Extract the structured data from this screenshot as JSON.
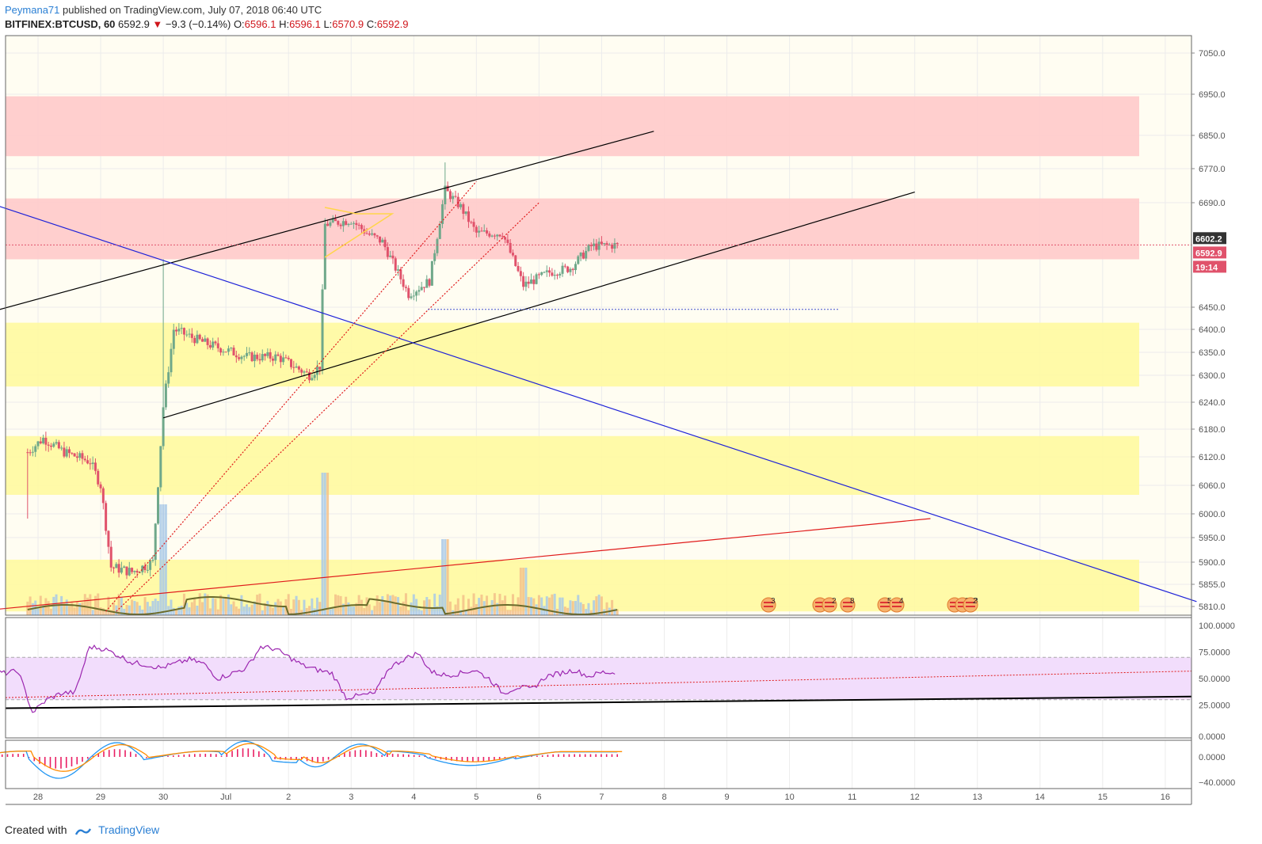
{
  "header": {
    "user": "Peymana71",
    "published": "published on TradingView.com, July 07, 2018 06:40 UTC",
    "symbol": "BITFINEX:BTCUSD, 60",
    "last": "6592.9",
    "change": "−9.3 (−0.14%)",
    "o_label": "O:",
    "o_val": "6596.1",
    "h_label": "H:",
    "h_val": "6596.1",
    "l_label": "L:",
    "l_val": "6570.9",
    "c_label": "C:",
    "c_val": "6592.9"
  },
  "footer": {
    "created": "Created with",
    "brand": "TradingView"
  },
  "colors": {
    "up": "#6fa88a",
    "down": "#e0526b",
    "supply_zone": "#ffcccb",
    "demand_zone": "#fffaa0",
    "rsi_band": "#f2ddfc",
    "rsi_line": "#9c27b0",
    "macd_line": "#2196f3",
    "signal_line": "#ff8c00",
    "histogram": "#e91e63"
  },
  "chart_data": [
    {
      "type": "candlestick",
      "name": "price",
      "yticks": [
        "7050.0",
        "6950.0",
        "6850.0",
        "6770.0",
        "6690.0",
        "6450.0",
        "6400.0",
        "6350.0",
        "6300.0",
        "6240.0",
        "6180.0",
        "6120.0",
        "6060.0",
        "6000.0",
        "5950.0",
        "5900.0",
        "5855.0",
        "5810.0"
      ],
      "xticks": [
        "28",
        "29",
        "30",
        "Jul",
        "2",
        "3",
        "4",
        "5",
        "6",
        "7",
        "8",
        "9",
        "10",
        "11",
        "12",
        "13",
        "14",
        "15",
        "16"
      ],
      "price_labels": [
        {
          "text": "6602.2",
          "color": "#333333"
        },
        {
          "text": "6592.9",
          "color": "#e0526b"
        },
        {
          "text": "19:14",
          "color": "#e0526b"
        }
      ],
      "zones": [
        {
          "kind": "supply",
          "from": 6800,
          "to": 6945
        },
        {
          "kind": "supply",
          "from": 6560,
          "to": 6700
        },
        {
          "kind": "demand",
          "from": 6275,
          "to": 6415
        },
        {
          "kind": "demand",
          "from": 6040,
          "to": 6165
        },
        {
          "kind": "demand",
          "from": 5800,
          "to": 5905
        }
      ],
      "ohlc_anchors": [
        {
          "date": "Jun 27 20:00",
          "close": 6130
        },
        {
          "date": "Jun 28 02:00",
          "close": 6160
        },
        {
          "date": "Jun 28 10:00",
          "close": 6130
        },
        {
          "date": "Jun 28 20:00",
          "close": 6110
        },
        {
          "date": "Jun 29 00:00",
          "close": 6060
        },
        {
          "date": "Jun 29 04:00",
          "close": 5890
        },
        {
          "date": "Jun 29 12:00",
          "close": 5880
        },
        {
          "date": "Jun 29 20:00",
          "close": 5900
        },
        {
          "date": "Jun 30 00:00",
          "close": 6230
        },
        {
          "date": "Jun 30 04:00",
          "close": 6400
        },
        {
          "date": "Jun 30 16:00",
          "close": 6370
        },
        {
          "date": "Jul 01 08:00",
          "close": 6340
        },
        {
          "date": "Jul 01 20:00",
          "close": 6340
        },
        {
          "date": "Jul 02 08:00",
          "close": 6300
        },
        {
          "date": "Jul 02 12:00",
          "close": 6320
        },
        {
          "date": "Jul 02 14:00",
          "close": 6640
        },
        {
          "date": "Jul 03 00:00",
          "close": 6650
        },
        {
          "date": "Jul 03 06:00",
          "close": 6620
        },
        {
          "date": "Jul 03 12:00",
          "close": 6600
        },
        {
          "date": "Jul 03 22:00",
          "close": 6480
        },
        {
          "date": "Jul 04 06:00",
          "close": 6510
        },
        {
          "date": "Jul 04 12:00",
          "close": 6720
        },
        {
          "date": "Jul 04 18:00",
          "close": 6680
        },
        {
          "date": "Jul 05 00:00",
          "close": 6620
        },
        {
          "date": "Jul 05 10:00",
          "close": 6620
        },
        {
          "date": "Jul 05 18:00",
          "close": 6500
        },
        {
          "date": "Jul 06 04:00",
          "close": 6530
        },
        {
          "date": "Jul 06 12:00",
          "close": 6540
        },
        {
          "date": "Jul 06 20:00",
          "close": 6590
        },
        {
          "date": "Jul 07 06:00",
          "close": 6593
        }
      ],
      "annotations": [
        {
          "kind": "trendline",
          "color": "#000000",
          "from": {
            "date": "Jun 27 00:00",
            "price": 6430
          },
          "to": {
            "date": "Jul 07 20:00",
            "price": 6860
          }
        },
        {
          "kind": "trendline",
          "color": "#000000",
          "from": {
            "date": "Jun 30 00:00",
            "price": 6205
          },
          "to": {
            "date": "Jul 12 00:00",
            "price": 6715
          }
        },
        {
          "kind": "trendline",
          "color": "#1e22d8",
          "from": {
            "date": "Jun 27 00:00",
            "price": 6700
          },
          "to": {
            "date": "Jul 16 12:00",
            "price": 5820
          }
        },
        {
          "kind": "trendline",
          "color": "#e01b1b",
          "from": {
            "date": "Jun 27 00:00",
            "price": 5800
          },
          "to": {
            "date": "Jul 12 06:00",
            "price": 5990
          }
        },
        {
          "kind": "dotted",
          "color": "#e01b1b",
          "from": {
            "date": "Jun 29 02:00",
            "price": 5800
          },
          "to": {
            "date": "Jul 05 00:00",
            "price": 6740
          }
        },
        {
          "kind": "dotted",
          "color": "#e01b1b",
          "from": {
            "date": "Jun 29 06:00",
            "price": 5800
          },
          "to": {
            "date": "Jul 06 00:00",
            "price": 6690
          }
        },
        {
          "kind": "hline_dotted",
          "color": "#4050d0",
          "price": 6445
        }
      ],
      "event_badges": [
        "3",
        "2",
        "8",
        "5",
        "4",
        "343",
        "2"
      ]
    },
    {
      "type": "line",
      "name": "RSI",
      "yticks": [
        "100.0000",
        "75.0000",
        "50.0000",
        "25.0000"
      ],
      "band": [
        30,
        70
      ],
      "values_anchor": [
        55,
        59,
        55,
        57,
        18,
        30,
        36,
        37,
        80,
        78,
        72,
        65,
        63,
        60,
        64,
        68,
        64,
        50,
        55,
        60,
        80,
        78,
        70,
        62,
        58,
        55,
        32,
        34,
        36,
        60,
        68,
        74,
        56,
        53,
        55,
        58,
        50,
        36,
        42,
        40,
        52,
        55,
        58,
        52,
        56,
        55
      ]
    },
    {
      "type": "histogram",
      "name": "MACD",
      "yticks": [
        "0.0000",
        "−40.0000"
      ]
    }
  ]
}
